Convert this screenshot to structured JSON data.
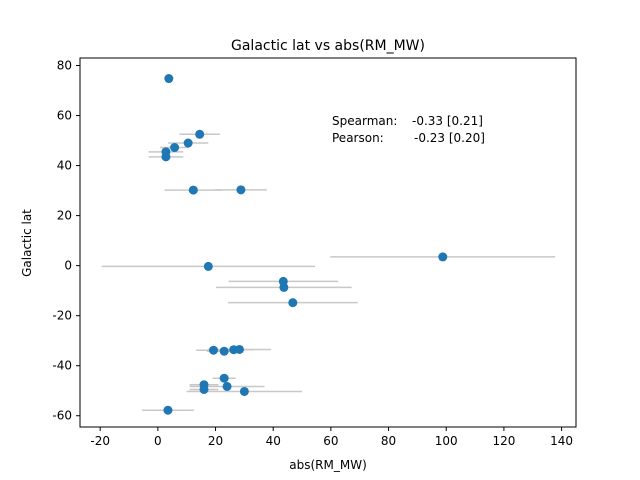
{
  "chart_data": {
    "type": "scatter",
    "title": "Galactic lat vs abs(RM_MW)",
    "xlabel": "abs(RM_MW)",
    "ylabel": "Galactic lat",
    "xlim": [
      -27,
      145
    ],
    "ylim": [
      -64.5,
      83
    ],
    "xticks": [
      -20,
      0,
      20,
      40,
      60,
      80,
      100,
      120,
      140
    ],
    "yticks": [
      -60,
      -40,
      -20,
      0,
      20,
      40,
      60,
      80
    ],
    "grid": false,
    "annotations": [
      {
        "label": "Spearman:",
        "value": "-0.33 [0.21]"
      },
      {
        "label": "Pearson:",
        "value": "-0.23 [0.20]"
      }
    ],
    "series": [
      {
        "color": "#1f77b4",
        "errorbar_color": "#c8c8c8",
        "points": [
          {
            "x": 3.8,
            "y": 74.8,
            "xerr": 0
          },
          {
            "x": 14.5,
            "y": 52.5,
            "xerr": 7
          },
          {
            "x": 10.5,
            "y": 49.0,
            "xerr": 7
          },
          {
            "x": 5.8,
            "y": 47.2,
            "xerr": 5
          },
          {
            "x": 2.8,
            "y": 45.5,
            "xerr": 6
          },
          {
            "x": 2.8,
            "y": 43.5,
            "xerr": 6
          },
          {
            "x": 12.3,
            "y": 30.2,
            "xerr": 10
          },
          {
            "x": 28.8,
            "y": 30.3,
            "xerr": 9
          },
          {
            "x": 98.8,
            "y": 3.5,
            "xerr": 39
          },
          {
            "x": 17.5,
            "y": -0.3,
            "xerr": 37
          },
          {
            "x": 43.5,
            "y": -6.3,
            "xerr": 19
          },
          {
            "x": 43.7,
            "y": -8.7,
            "xerr": 23.5
          },
          {
            "x": 46.8,
            "y": -14.8,
            "xerr": 22.5
          },
          {
            "x": 19.3,
            "y": -33.8,
            "xerr": 6
          },
          {
            "x": 23.0,
            "y": -34.2,
            "xerr": 6
          },
          {
            "x": 26.3,
            "y": -33.6,
            "xerr": 7
          },
          {
            "x": 28.3,
            "y": -33.5,
            "xerr": 11
          },
          {
            "x": 23.0,
            "y": -45.0,
            "xerr": 4
          },
          {
            "x": 16.0,
            "y": -47.6,
            "xerr": 5
          },
          {
            "x": 16.0,
            "y": -49.5,
            "xerr": 5
          },
          {
            "x": 24.0,
            "y": -48.3,
            "xerr": 13
          },
          {
            "x": 30.0,
            "y": -50.3,
            "xerr": 20
          },
          {
            "x": 3.5,
            "y": -57.8,
            "xerr": 9
          }
        ]
      }
    ]
  }
}
